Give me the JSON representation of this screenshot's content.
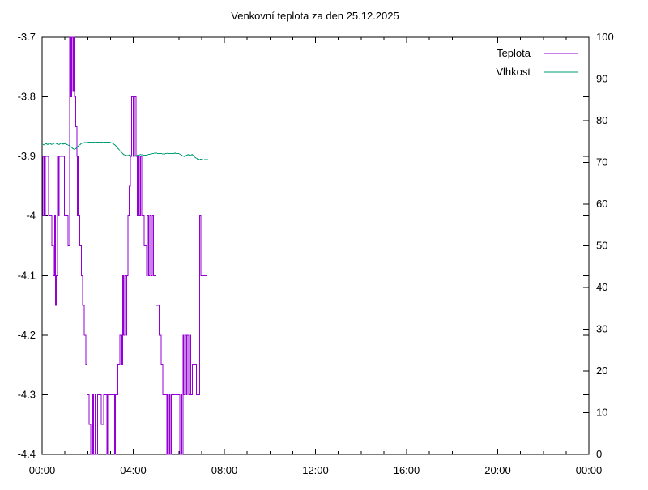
{
  "window": {
    "background": "#FFFFFF"
  },
  "chart_data": {
    "type": "line",
    "title": "Venkovní teplota za den 25.12.2025",
    "grid": false,
    "x_axis": {
      "unit": "time-of-day",
      "range_hours": [
        0,
        24
      ],
      "major_tick_hours": [
        0,
        4,
        8,
        12,
        16,
        20,
        24
      ],
      "major_tick_labels": [
        "00:00",
        "04:00",
        "08:00",
        "12:00",
        "16:00",
        "20:00",
        "00:00"
      ],
      "minor_tick_every_hours": 1
    },
    "y_left_axis": {
      "role": "temperature",
      "range": [
        -4.4,
        -3.7
      ],
      "tick_step": 0.1,
      "tick_labels": [
        "-3.7",
        "-3.8",
        "-3.9",
        "-4",
        "-4.1",
        "-4.2",
        "-4.3",
        "-4.4"
      ]
    },
    "y_right_axis": {
      "role": "humidity",
      "range": [
        0,
        100
      ],
      "tick_step": 10,
      "tick_labels": [
        "100",
        "90",
        "80",
        "70",
        "60",
        "50",
        "40",
        "30",
        "20",
        "10",
        "0"
      ]
    },
    "legend": {
      "position": "top-right"
    },
    "axis_color": "#000000",
    "series": [
      {
        "name": "Teplota",
        "color": "#9400D3",
        "axis": "left",
        "points": [
          [
            0.0,
            -3.9
          ],
          [
            0.03,
            -3.9
          ],
          [
            0.03,
            -4.0
          ],
          [
            0.08,
            -4.0
          ],
          [
            0.08,
            -3.9
          ],
          [
            0.12,
            -3.9
          ],
          [
            0.12,
            -4.0
          ],
          [
            0.15,
            -4.0
          ],
          [
            0.15,
            -3.9
          ],
          [
            0.28,
            -3.9
          ],
          [
            0.28,
            -4.0
          ],
          [
            0.43,
            -4.0
          ],
          [
            0.43,
            -4.05
          ],
          [
            0.5,
            -4.05
          ],
          [
            0.5,
            -4.1
          ],
          [
            0.55,
            -4.1
          ],
          [
            0.55,
            -4.0
          ],
          [
            0.58,
            -4.0
          ],
          [
            0.58,
            -4.15
          ],
          [
            0.62,
            -4.15
          ],
          [
            0.62,
            -4.1
          ],
          [
            0.68,
            -4.1
          ],
          [
            0.68,
            -3.9
          ],
          [
            0.72,
            -3.9
          ],
          [
            0.72,
            -4.0
          ],
          [
            0.75,
            -4.0
          ],
          [
            0.75,
            -3.9
          ],
          [
            0.97,
            -3.9
          ],
          [
            0.97,
            -4.0
          ],
          [
            1.13,
            -4.0
          ],
          [
            1.13,
            -4.05
          ],
          [
            1.2,
            -4.05
          ],
          [
            1.2,
            -3.7
          ],
          [
            1.27,
            -3.7
          ],
          [
            1.27,
            -3.8
          ],
          [
            1.3,
            -3.8
          ],
          [
            1.3,
            -3.7
          ],
          [
            1.35,
            -3.7
          ],
          [
            1.35,
            -3.79
          ],
          [
            1.38,
            -3.79
          ],
          [
            1.38,
            -3.7
          ],
          [
            1.43,
            -3.7
          ],
          [
            1.43,
            -3.8
          ],
          [
            1.47,
            -3.8
          ],
          [
            1.47,
            -3.85
          ],
          [
            1.52,
            -3.85
          ],
          [
            1.52,
            -3.9
          ],
          [
            1.55,
            -3.9
          ],
          [
            1.55,
            -4.0
          ],
          [
            1.57,
            -4.0
          ],
          [
            1.57,
            -3.9
          ],
          [
            1.6,
            -3.9
          ],
          [
            1.6,
            -4.0
          ],
          [
            1.65,
            -4.0
          ],
          [
            1.65,
            -4.05
          ],
          [
            1.72,
            -4.05
          ],
          [
            1.72,
            -4.1
          ],
          [
            1.78,
            -4.1
          ],
          [
            1.78,
            -4.15
          ],
          [
            1.85,
            -4.15
          ],
          [
            1.85,
            -4.2
          ],
          [
            1.92,
            -4.2
          ],
          [
            1.92,
            -4.25
          ],
          [
            1.98,
            -4.25
          ],
          [
            1.98,
            -4.3
          ],
          [
            2.07,
            -4.3
          ],
          [
            2.07,
            -4.35
          ],
          [
            2.13,
            -4.35
          ],
          [
            2.13,
            -4.4
          ],
          [
            2.22,
            -4.4
          ],
          [
            2.22,
            -4.3
          ],
          [
            2.25,
            -4.3
          ],
          [
            2.25,
            -4.4
          ],
          [
            2.32,
            -4.4
          ],
          [
            2.32,
            -4.3
          ],
          [
            2.35,
            -4.3
          ],
          [
            2.35,
            -4.4
          ],
          [
            2.43,
            -4.4
          ],
          [
            2.43,
            -4.3
          ],
          [
            2.6,
            -4.3
          ],
          [
            2.6,
            -4.35
          ],
          [
            2.7,
            -4.35
          ],
          [
            2.7,
            -4.3
          ],
          [
            2.85,
            -4.3
          ],
          [
            2.85,
            -4.4
          ],
          [
            2.88,
            -4.4
          ],
          [
            2.88,
            -4.3
          ],
          [
            3.18,
            -4.3
          ],
          [
            3.18,
            -4.4
          ],
          [
            3.22,
            -4.4
          ],
          [
            3.22,
            -4.3
          ],
          [
            3.33,
            -4.3
          ],
          [
            3.33,
            -4.25
          ],
          [
            3.42,
            -4.25
          ],
          [
            3.42,
            -4.2
          ],
          [
            3.5,
            -4.2
          ],
          [
            3.5,
            -4.25
          ],
          [
            3.53,
            -4.25
          ],
          [
            3.53,
            -4.1
          ],
          [
            3.58,
            -4.1
          ],
          [
            3.58,
            -4.2
          ],
          [
            3.63,
            -4.2
          ],
          [
            3.63,
            -4.1
          ],
          [
            3.68,
            -4.1
          ],
          [
            3.68,
            -4.2
          ],
          [
            3.72,
            -4.2
          ],
          [
            3.72,
            -4.1
          ],
          [
            3.77,
            -4.1
          ],
          [
            3.77,
            -4.0
          ],
          [
            3.83,
            -4.0
          ],
          [
            3.83,
            -3.95
          ],
          [
            3.88,
            -3.95
          ],
          [
            3.88,
            -3.9
          ],
          [
            3.93,
            -3.9
          ],
          [
            3.93,
            -3.8
          ],
          [
            4.0,
            -3.8
          ],
          [
            4.0,
            -3.9
          ],
          [
            4.05,
            -3.9
          ],
          [
            4.05,
            -3.8
          ],
          [
            4.12,
            -3.8
          ],
          [
            4.12,
            -3.9
          ],
          [
            4.18,
            -3.9
          ],
          [
            4.18,
            -4.0
          ],
          [
            4.22,
            -4.0
          ],
          [
            4.22,
            -3.9
          ],
          [
            4.27,
            -3.9
          ],
          [
            4.27,
            -4.0
          ],
          [
            4.32,
            -4.0
          ],
          [
            4.32,
            -3.9
          ],
          [
            4.38,
            -3.9
          ],
          [
            4.38,
            -4.0
          ],
          [
            4.48,
            -4.0
          ],
          [
            4.48,
            -4.05
          ],
          [
            4.58,
            -4.05
          ],
          [
            4.58,
            -4.1
          ],
          [
            4.62,
            -4.1
          ],
          [
            4.62,
            -4.0
          ],
          [
            4.67,
            -4.0
          ],
          [
            4.67,
            -4.1
          ],
          [
            4.72,
            -4.1
          ],
          [
            4.72,
            -4.0
          ],
          [
            4.78,
            -4.0
          ],
          [
            4.78,
            -4.1
          ],
          [
            4.83,
            -4.1
          ],
          [
            4.83,
            -4.0
          ],
          [
            4.88,
            -4.0
          ],
          [
            4.88,
            -4.1
          ],
          [
            5.0,
            -4.1
          ],
          [
            5.0,
            -4.15
          ],
          [
            5.13,
            -4.15
          ],
          [
            5.13,
            -4.2
          ],
          [
            5.22,
            -4.2
          ],
          [
            5.22,
            -4.25
          ],
          [
            5.3,
            -4.25
          ],
          [
            5.3,
            -4.3
          ],
          [
            5.47,
            -4.3
          ],
          [
            5.47,
            -4.4
          ],
          [
            5.5,
            -4.4
          ],
          [
            5.5,
            -4.3
          ],
          [
            5.53,
            -4.3
          ],
          [
            5.53,
            -4.4
          ],
          [
            5.58,
            -4.4
          ],
          [
            5.58,
            -4.3
          ],
          [
            5.62,
            -4.3
          ],
          [
            5.62,
            -4.4
          ],
          [
            5.67,
            -4.4
          ],
          [
            5.67,
            -4.3
          ],
          [
            6.05,
            -4.3
          ],
          [
            6.05,
            -4.4
          ],
          [
            6.1,
            -4.4
          ],
          [
            6.1,
            -4.3
          ],
          [
            6.13,
            -4.3
          ],
          [
            6.13,
            -4.4
          ],
          [
            6.18,
            -4.4
          ],
          [
            6.18,
            -4.2
          ],
          [
            6.22,
            -4.2
          ],
          [
            6.22,
            -4.3
          ],
          [
            6.27,
            -4.3
          ],
          [
            6.27,
            -4.2
          ],
          [
            6.32,
            -4.2
          ],
          [
            6.32,
            -4.3
          ],
          [
            6.37,
            -4.3
          ],
          [
            6.37,
            -4.2
          ],
          [
            6.43,
            -4.2
          ],
          [
            6.43,
            -4.3
          ],
          [
            6.48,
            -4.3
          ],
          [
            6.48,
            -4.2
          ],
          [
            6.53,
            -4.2
          ],
          [
            6.53,
            -4.3
          ],
          [
            6.6,
            -4.3
          ],
          [
            6.6,
            -4.25
          ],
          [
            6.78,
            -4.25
          ],
          [
            6.78,
            -4.3
          ],
          [
            6.92,
            -4.3
          ],
          [
            6.92,
            -4.0
          ],
          [
            6.97,
            -4.0
          ],
          [
            6.97,
            -4.1
          ],
          [
            7.25,
            -4.1
          ]
        ]
      },
      {
        "name": "Vlhkost",
        "color": "#009E73",
        "axis": "right",
        "points": [
          [
            0.0,
            74.4
          ],
          [
            0.08,
            74.2
          ],
          [
            0.17,
            74.5
          ],
          [
            0.25,
            74.3
          ],
          [
            0.33,
            74.6
          ],
          [
            0.42,
            74.3
          ],
          [
            0.5,
            74.5
          ],
          [
            0.58,
            74.7
          ],
          [
            0.67,
            74.4
          ],
          [
            0.75,
            74.3
          ],
          [
            0.83,
            74.6
          ],
          [
            0.92,
            74.4
          ],
          [
            1.0,
            74.5
          ],
          [
            1.08,
            74.3
          ],
          [
            1.17,
            74.1
          ],
          [
            1.25,
            73.8
          ],
          [
            1.33,
            73.4
          ],
          [
            1.42,
            73.1
          ],
          [
            1.5,
            73.4
          ],
          [
            1.58,
            73.9
          ],
          [
            1.67,
            74.3
          ],
          [
            1.75,
            74.6
          ],
          [
            1.83,
            74.7
          ],
          [
            1.92,
            74.8
          ],
          [
            2.0,
            74.8
          ],
          [
            2.17,
            74.9
          ],
          [
            2.33,
            74.8
          ],
          [
            2.5,
            74.9
          ],
          [
            2.67,
            74.8
          ],
          [
            2.83,
            74.9
          ],
          [
            3.0,
            74.8
          ],
          [
            3.08,
            74.6
          ],
          [
            3.17,
            74.3
          ],
          [
            3.25,
            73.9
          ],
          [
            3.33,
            73.4
          ],
          [
            3.42,
            72.8
          ],
          [
            3.5,
            72.3
          ],
          [
            3.58,
            71.9
          ],
          [
            3.67,
            71.7
          ],
          [
            3.75,
            71.6
          ],
          [
            3.83,
            71.8
          ],
          [
            3.92,
            71.6
          ],
          [
            4.0,
            71.5
          ],
          [
            4.17,
            71.7
          ],
          [
            4.33,
            71.9
          ],
          [
            4.5,
            71.7
          ],
          [
            4.67,
            71.9
          ],
          [
            4.83,
            72.1
          ],
          [
            5.0,
            72.3
          ],
          [
            5.08,
            72.1
          ],
          [
            5.17,
            72.2
          ],
          [
            5.33,
            72.0
          ],
          [
            5.5,
            72.2
          ],
          [
            5.67,
            72.1
          ],
          [
            5.83,
            72.2
          ],
          [
            6.0,
            72.1
          ],
          [
            6.08,
            71.9
          ],
          [
            6.17,
            71.6
          ],
          [
            6.25,
            71.4
          ],
          [
            6.33,
            71.7
          ],
          [
            6.42,
            71.9
          ],
          [
            6.5,
            71.6
          ],
          [
            6.58,
            71.9
          ],
          [
            6.67,
            71.4
          ],
          [
            6.75,
            71.1
          ],
          [
            6.83,
            70.8
          ],
          [
            6.92,
            70.7
          ],
          [
            7.0,
            70.8
          ],
          [
            7.08,
            70.6
          ],
          [
            7.17,
            70.7
          ],
          [
            7.33,
            70.6
          ]
        ]
      }
    ]
  }
}
